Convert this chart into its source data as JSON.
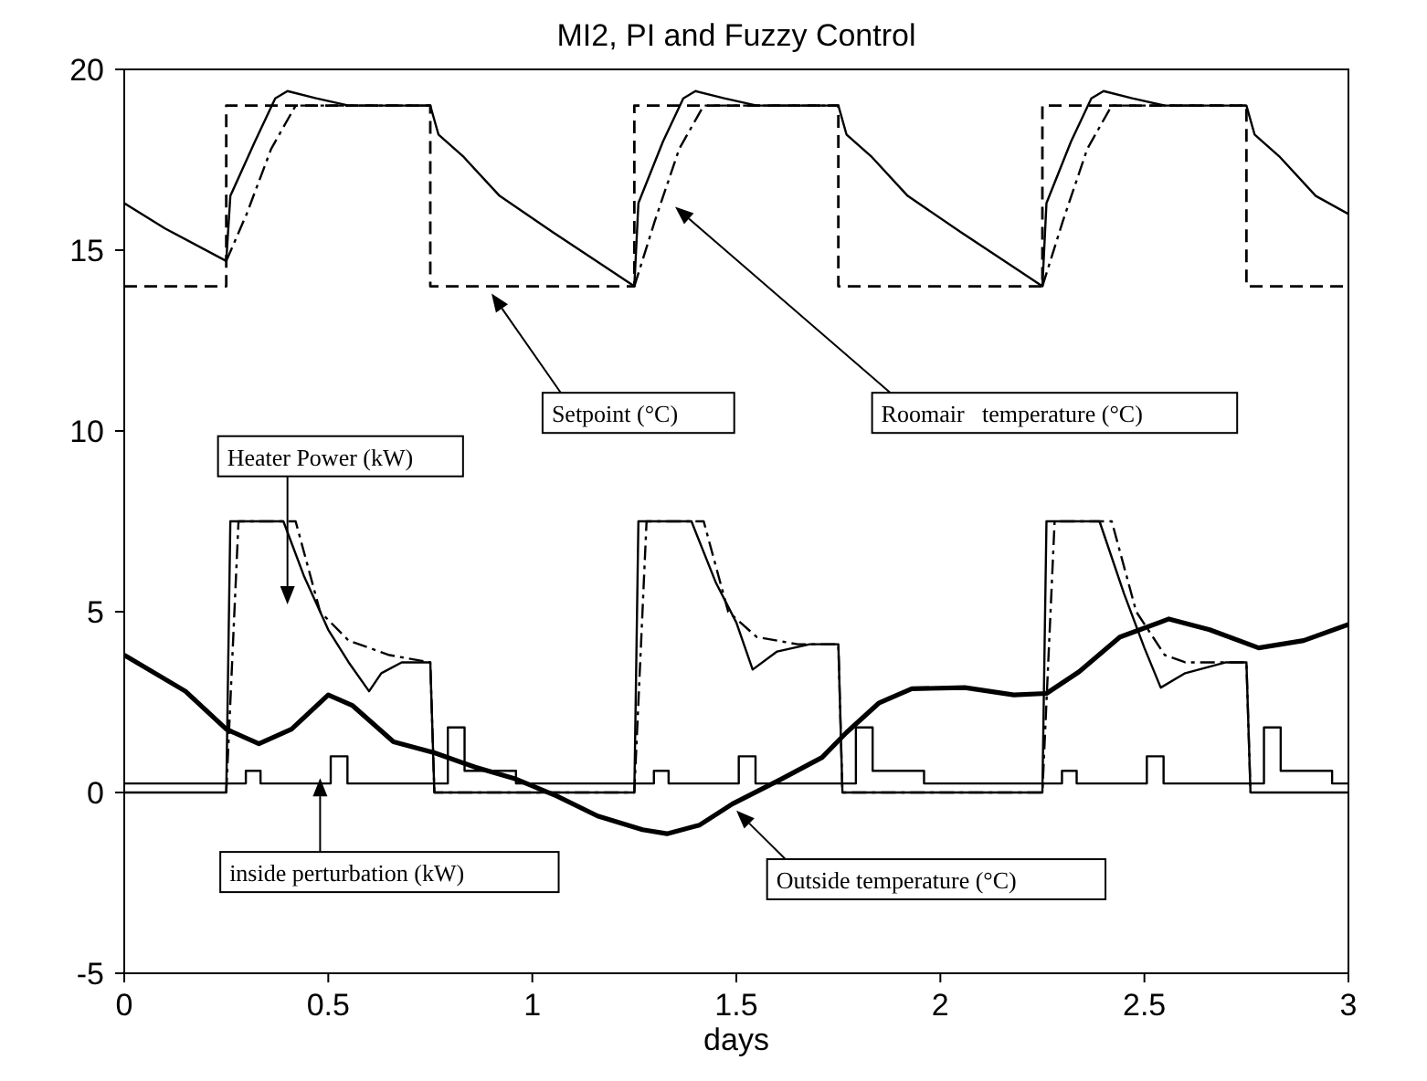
{
  "chart_data": {
    "type": "line",
    "title": "MI2, PI and Fuzzy  Control",
    "xlabel": "days",
    "xlim": [
      0,
      3
    ],
    "xticks": [
      0,
      0.5,
      1,
      1.5,
      2,
      2.5,
      3
    ],
    "ylim": [
      -5,
      20
    ],
    "yticks": [
      -5,
      0,
      5,
      10,
      15,
      20
    ],
    "marker": "none",
    "series": [
      {
        "color": "#000000",
        "line_style": "dashed",
        "x": [
          0,
          0.25,
          0.25,
          0.75,
          0.75,
          1.25,
          1.25,
          1.75,
          1.75,
          2.25,
          2.25,
          2.75,
          2.75,
          3
        ],
        "values": [
          14,
          14,
          19,
          19,
          14,
          14,
          19,
          19,
          14,
          14,
          19,
          19,
          14,
          14
        ]
      },
      {
        "color": "#000000",
        "line_style": "solid",
        "x": [
          0,
          0.1,
          0.25,
          0.26,
          0.32,
          0.37,
          0.4,
          0.47,
          0.55,
          0.75,
          0.77,
          0.83,
          0.92,
          1.05,
          1.17,
          1.25,
          1.26,
          1.32,
          1.37,
          1.4,
          1.47,
          1.55,
          1.75,
          1.77,
          1.83,
          1.92,
          2.05,
          2.17,
          2.25,
          2.26,
          2.32,
          2.37,
          2.4,
          2.47,
          2.55,
          2.75,
          2.77,
          2.83,
          2.92,
          3
        ],
        "values": [
          16.3,
          15.6,
          14.7,
          16.5,
          18,
          19.2,
          19.4,
          19.2,
          19,
          19,
          18.2,
          17.6,
          16.5,
          15.5,
          14.6,
          14,
          16.3,
          18,
          19.2,
          19.4,
          19.2,
          19,
          19,
          18.2,
          17.6,
          16.5,
          15.5,
          14.6,
          14,
          16.3,
          18,
          19.2,
          19.4,
          19.2,
          19,
          19,
          18.2,
          17.6,
          16.5,
          16
        ]
      },
      {
        "color": "#000000",
        "line_style": "dashdot",
        "x": [
          0.25,
          0.3,
          0.36,
          0.42,
          0.75,
          0.76,
          1.25,
          1.3,
          1.36,
          1.42,
          1.75,
          1.76,
          2.25,
          2.3,
          2.36,
          2.42,
          2.75
        ],
        "values": [
          14.7,
          16,
          17.8,
          19,
          19,
          null,
          14,
          15.8,
          17.8,
          19,
          19,
          null,
          14,
          15.8,
          17.8,
          19,
          19
        ]
      },
      {
        "color": "#000000",
        "line_style": "solid",
        "x": [
          0,
          0.25,
          0.26,
          0.39,
          0.44,
          0.5,
          0.55,
          0.6,
          0.63,
          0.68,
          0.75,
          0.76,
          1.25,
          1.26,
          1.39,
          1.45,
          1.5,
          1.54,
          1.6,
          1.68,
          1.75,
          1.76,
          2.25,
          2.26,
          2.39,
          2.45,
          2.5,
          2.54,
          2.6,
          2.7,
          2.75,
          2.76,
          3
        ],
        "values": [
          0,
          0,
          7.5,
          7.5,
          6,
          4.5,
          3.6,
          2.8,
          3.3,
          3.6,
          3.6,
          0,
          0,
          7.5,
          7.5,
          5.8,
          4.7,
          3.4,
          3.9,
          4.1,
          4.1,
          0,
          0,
          7.5,
          7.5,
          5.5,
          4,
          2.9,
          3.3,
          3.6,
          3.6,
          0,
          0
        ]
      },
      {
        "color": "#000000",
        "line_style": "dashdot",
        "x": [
          0.25,
          0.28,
          0.42,
          0.48,
          0.55,
          0.6,
          0.65,
          0.75,
          0.76,
          1.25,
          1.28,
          1.42,
          1.48,
          1.55,
          1.6,
          1.65,
          1.75,
          1.76,
          2.25,
          2.28,
          2.42,
          2.48,
          2.55,
          2.6,
          2.65,
          2.75,
          2.76
        ],
        "values": [
          0,
          7.5,
          7.5,
          5,
          4.2,
          4,
          3.8,
          3.6,
          0,
          0,
          7.5,
          7.5,
          5,
          4.3,
          4.2,
          4.1,
          4.1,
          0,
          0,
          7.5,
          7.5,
          5,
          3.8,
          3.6,
          3.6,
          3.6,
          0
        ]
      },
      {
        "color": "#000000",
        "line_style": "solid",
        "x": [
          0,
          0.298,
          0.298,
          0.334,
          0.334,
          0.506,
          0.506,
          0.547,
          0.547,
          0.793,
          0.793,
          0.834,
          0.834,
          0.96,
          0.96,
          1.298,
          1.298,
          1.334,
          1.334,
          1.506,
          1.506,
          1.547,
          1.547,
          1.793,
          1.793,
          1.834,
          1.834,
          1.96,
          1.96,
          2.298,
          2.298,
          2.334,
          2.334,
          2.506,
          2.506,
          2.547,
          2.547,
          2.793,
          2.793,
          2.834,
          2.834,
          2.96,
          2.96,
          3
        ],
        "values": [
          0.25,
          0.25,
          0.6,
          0.6,
          0.25,
          0.25,
          1,
          1,
          0.25,
          0.25,
          1.8,
          1.8,
          0.6,
          0.6,
          0.25,
          0.25,
          0.6,
          0.6,
          0.25,
          0.25,
          1,
          1,
          0.25,
          0.25,
          1.8,
          1.8,
          0.6,
          0.6,
          0.25,
          0.25,
          0.6,
          0.6,
          0.25,
          0.25,
          1,
          1,
          0.25,
          0.25,
          1.8,
          1.8,
          0.6,
          0.6,
          0.25,
          0.25
        ]
      },
      {
        "color": "#000000",
        "line_style": "solid",
        "x": [
          0,
          0.15,
          0.25,
          0.33,
          0.41,
          0.5,
          0.56,
          0.66,
          0.76,
          0.86,
          0.96,
          1.06,
          1.16,
          1.27,
          1.33,
          1.41,
          1.49,
          1.61,
          1.71,
          1.77,
          1.85,
          1.93,
          2.06,
          2.18,
          2.26,
          2.34,
          2.44,
          2.56,
          2.66,
          2.78,
          2.89,
          3
        ],
        "values": [
          3.8,
          2.8,
          1.75,
          1.35,
          1.75,
          2.7,
          2.4,
          1.4,
          1.1,
          0.7,
          0.37,
          -0.1,
          -0.65,
          -1.03,
          -1.14,
          -0.9,
          -0.32,
          0.37,
          0.97,
          1.66,
          2.48,
          2.87,
          2.9,
          2.7,
          2.74,
          3.34,
          4.3,
          4.8,
          4.5,
          4,
          4.2,
          4.65
        ]
      }
    ],
    "annotations": [
      "Setpoint (°C)",
      "Roomair   temperature (°C)",
      "Heater Power (kW)",
      "inside perturbation (kW)",
      "Outside temperature (°C)"
    ]
  }
}
